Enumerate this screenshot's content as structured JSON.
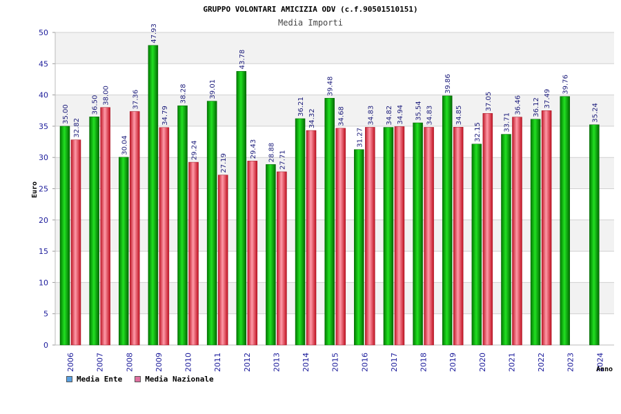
{
  "title": "GRUPPO VOLONTARI AMICIZIA ODV (c.f.90501510151)",
  "subtitle": "Media Importi",
  "colors": {
    "ente": "#00b000",
    "nazionale": "#e84050",
    "band": "#f2f2f2",
    "grid": "#d0d0d0"
  },
  "legend": {
    "ente_label": "Media Ente",
    "ente_swatch": "#5aa0e0",
    "nazionale_label": "Media Nazionale",
    "nazionale_swatch": "#e070a0"
  },
  "chart_data": {
    "type": "bar",
    "title": "GRUPPO VOLONTARI AMICIZIA ODV (c.f.90501510151)",
    "subtitle": "Media Importi",
    "xlabel": "Anno",
    "ylabel": "Euro",
    "ylim": [
      0,
      50
    ],
    "yticks": [
      0,
      5,
      10,
      15,
      20,
      25,
      30,
      35,
      40,
      45,
      50
    ],
    "categories": [
      "2006",
      "2007",
      "2008",
      "2009",
      "2010",
      "2011",
      "2012",
      "2013",
      "2014",
      "2015",
      "2016",
      "2017",
      "2018",
      "2019",
      "2020",
      "2021",
      "2022",
      "2023",
      "2024"
    ],
    "series": [
      {
        "name": "Media Ente",
        "values": [
          35.0,
          36.5,
          30.04,
          47.93,
          38.28,
          39.01,
          43.78,
          28.88,
          36.21,
          39.48,
          31.27,
          34.82,
          35.54,
          39.86,
          32.15,
          33.71,
          36.12,
          39.76,
          35.24
        ],
        "labels": [
          "35.00",
          "36.50",
          "30.04",
          "47.93",
          "38.28",
          "39.01",
          "43.78",
          "28.88",
          "36.21",
          "39.48",
          "31.27",
          "34.82",
          "35.54",
          "39.86",
          "32.15",
          "33.71",
          "36.12",
          "39.76",
          "35.24"
        ]
      },
      {
        "name": "Media Nazionale",
        "values": [
          32.82,
          38.0,
          37.36,
          34.79,
          29.24,
          27.19,
          29.43,
          27.71,
          34.32,
          34.68,
          34.83,
          34.94,
          34.83,
          34.85,
          37.05,
          36.46,
          37.49,
          null,
          null
        ],
        "labels": [
          "32.82",
          "38.00",
          "37.36",
          "34.79",
          "29.24",
          "27.19",
          "29.43",
          "27.71",
          "34.32",
          "34.68",
          "34.83",
          "34.94",
          "34.83",
          "34.85",
          "37.05",
          "36.46",
          "37.49",
          null,
          null
        ]
      }
    ],
    "grid": true,
    "legend_position": "bottom-left"
  }
}
